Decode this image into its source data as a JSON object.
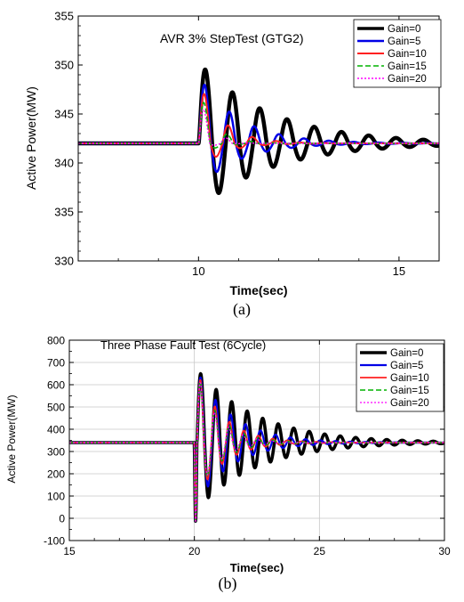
{
  "chart_data": [
    {
      "type": "line",
      "title": "AVR 3% StepTest (GTG2)",
      "xlabel": "Time(sec)",
      "ylabel": "Active Power(MW)",
      "caption": "(a)",
      "xlim": [
        7,
        16
      ],
      "ylim": [
        330,
        355
      ],
      "xticks": [
        10,
        15
      ],
      "yticks": [
        330,
        335,
        340,
        345,
        350,
        355
      ],
      "legend_position": "top-right",
      "grid": false,
      "step_time": 10,
      "baseline": 342,
      "final_value": 342,
      "series": [
        {
          "name": "Gain=0",
          "color": "#000000",
          "dash": "solid",
          "peak": 350.3,
          "first_trough": 335.3,
          "damping": 0.55,
          "period": 0.68
        },
        {
          "name": "Gain=5",
          "color": "#0000e6",
          "dash": "solid",
          "peak": 349.0,
          "first_trough": 337.4,
          "damping": 1.0,
          "period": 0.62
        },
        {
          "name": "Gain=10",
          "color": "#ff2020",
          "dash": "solid",
          "peak": 348.5,
          "first_trough": 339.1,
          "damping": 1.7,
          "period": 0.6
        },
        {
          "name": "Gain=15",
          "color": "#00b400",
          "dash": "dashed",
          "peak": 348.0,
          "first_trough": 340.6,
          "damping": 2.6,
          "period": 0.58
        },
        {
          "name": "Gain=20",
          "color": "#ff00ff",
          "dash": "dotted",
          "peak": 347.4,
          "first_trough": 341.3,
          "damping": 3.3,
          "period": 0.56
        }
      ]
    },
    {
      "type": "line",
      "title": "Three Phase Fault Test (6Cycle)",
      "xlabel": "Time(sec)",
      "ylabel": "Active Power(MW)",
      "caption": "(b)",
      "xlim": [
        15,
        30
      ],
      "ylim": [
        -100,
        800
      ],
      "xticks": [
        15,
        20,
        25,
        30
      ],
      "yticks": [
        -100,
        0,
        100,
        200,
        300,
        400,
        500,
        600,
        700,
        800
      ],
      "legend_position": "top-right",
      "grid": true,
      "fault_start": 20,
      "baseline": 340,
      "series": [
        {
          "name": "Gain=0",
          "color": "#000000",
          "dash": "solid",
          "peak": 670,
          "first_trough": 40,
          "damping": 0.42,
          "period": 0.62
        },
        {
          "name": "Gain=5",
          "color": "#0000e6",
          "dash": "solid",
          "peak": 665,
          "first_trough": 70,
          "damping": 0.7,
          "period": 0.6
        },
        {
          "name": "Gain=10",
          "color": "#ff2020",
          "dash": "solid",
          "peak": 662,
          "first_trough": 90,
          "damping": 0.95,
          "period": 0.58
        },
        {
          "name": "Gain=15",
          "color": "#00b400",
          "dash": "dashed",
          "peak": 660,
          "first_trough": 95,
          "damping": 1.1,
          "period": 0.58
        },
        {
          "name": "Gain=20",
          "color": "#ff00ff",
          "dash": "dotted",
          "peak": 658,
          "first_trough": 100,
          "damping": 1.2,
          "period": 0.57
        }
      ]
    }
  ]
}
